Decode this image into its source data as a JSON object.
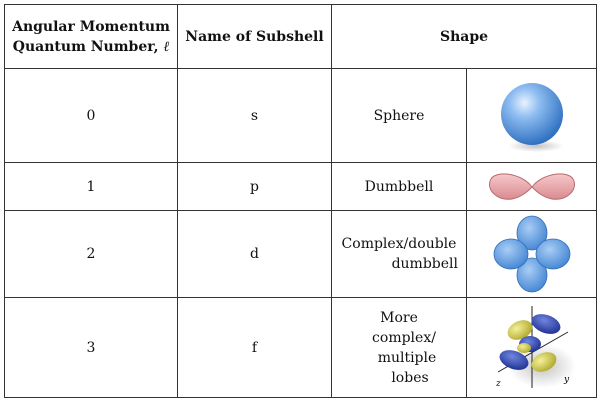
{
  "header": {
    "col1_line1": "Angular Momentum",
    "col1_line2": "Quantum Number,",
    "col1_symbol": "ℓ",
    "col2": "Name of Subshell",
    "col3": "Shape"
  },
  "rows": [
    {
      "l": "0",
      "subshell": "s",
      "shape_lines": [
        "Sphere"
      ],
      "icon": "sphere-icon"
    },
    {
      "l": "1",
      "subshell": "p",
      "shape_lines": [
        "Dumbbell"
      ],
      "icon": "dumbbell-icon"
    },
    {
      "l": "2",
      "subshell": "d",
      "shape_lines": [
        "Complex/double",
        "dumbbell"
      ],
      "icon": "four-lobe-icon"
    },
    {
      "l": "3",
      "subshell": "f",
      "shape_lines": [
        "More",
        "complex/",
        "multiple",
        "lobes"
      ],
      "icon": "multi-lobe-icon"
    }
  ],
  "f_axis_labels": {
    "z": "z",
    "y": "y"
  },
  "colors": {
    "sphere": "#5a9be0",
    "dumbbell": "#e8a0a4",
    "d_lobes": "#5a9be0",
    "f_blue": "#2a3fa8",
    "f_yellow": "#d7d23a"
  }
}
